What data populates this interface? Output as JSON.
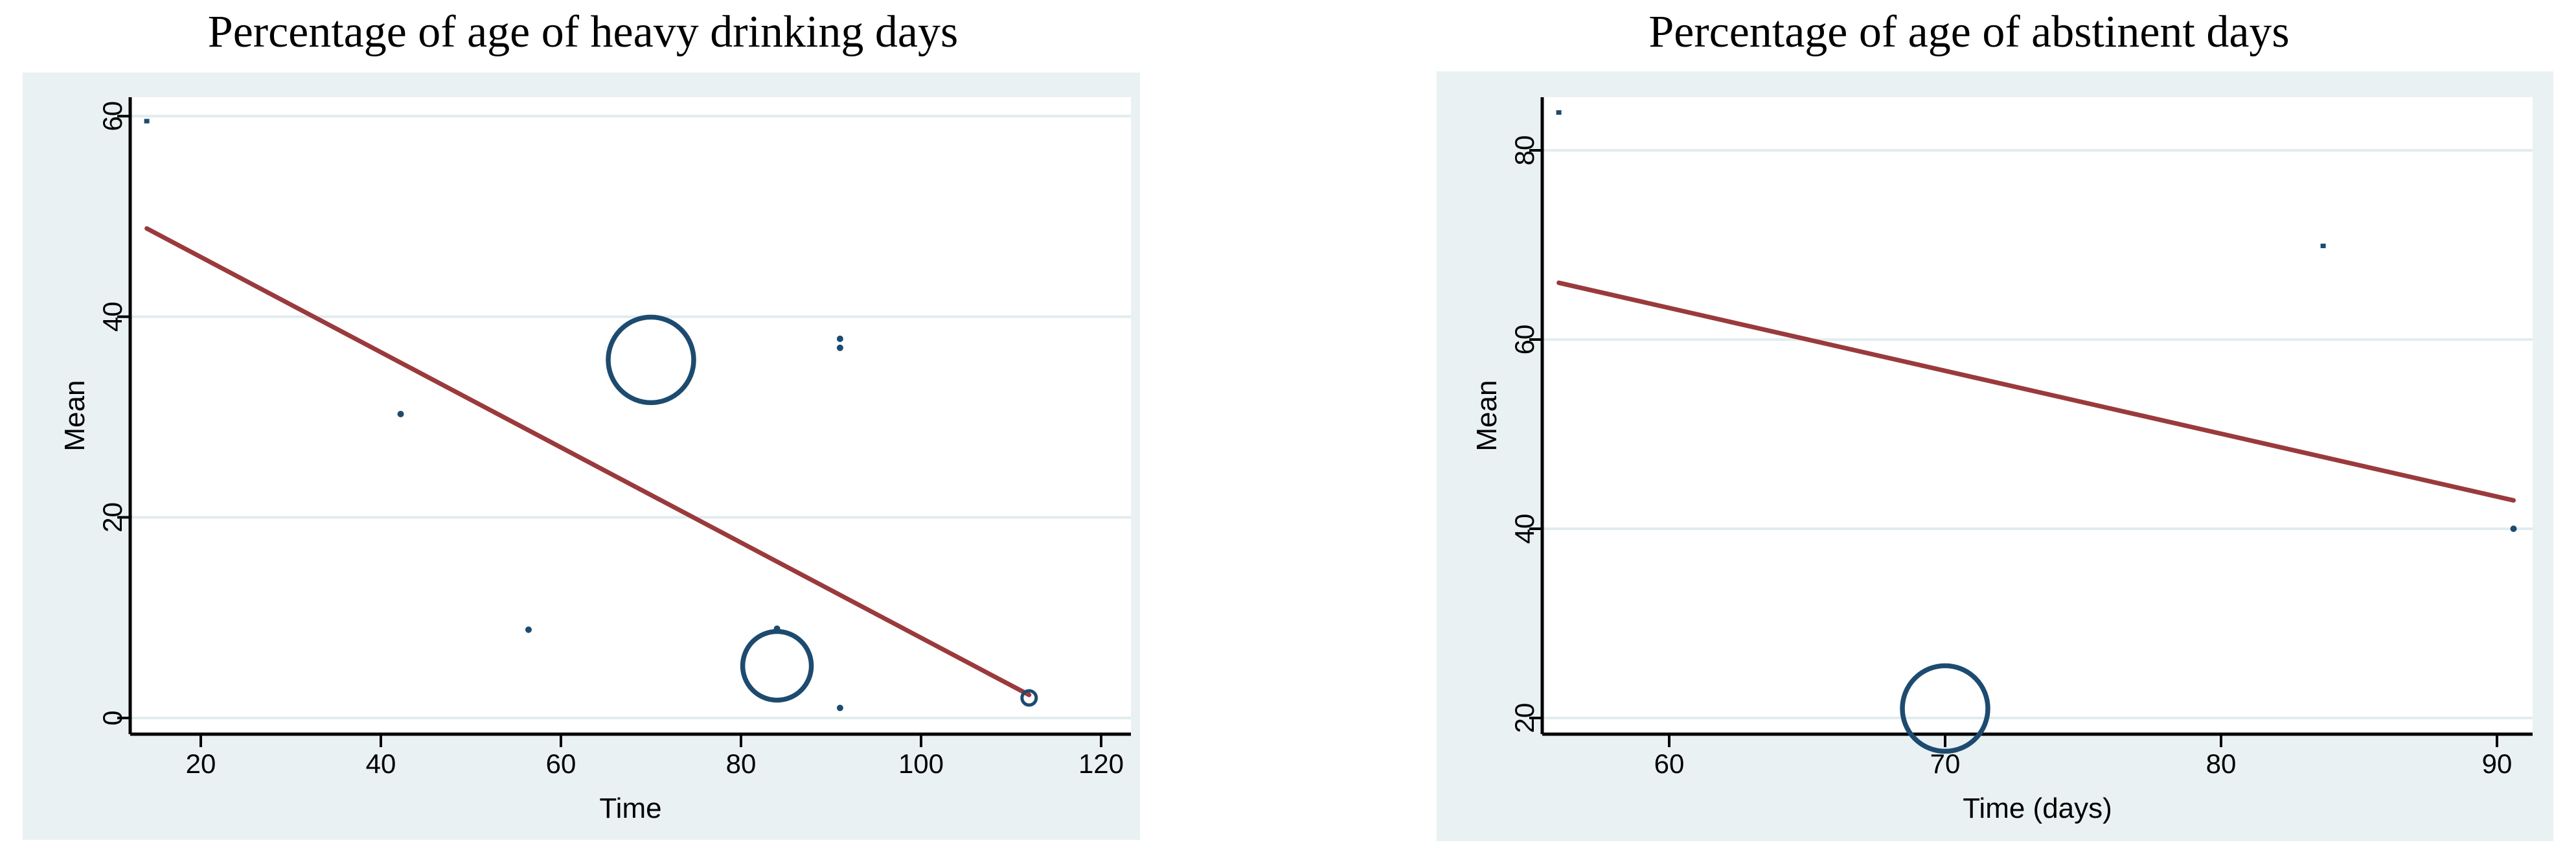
{
  "page": {
    "background": "#ffffff"
  },
  "palette": {
    "plot_outer_bg": "#eaf1f3",
    "plot_inner_bg": "#ffffff",
    "gridline": "#e1ecef",
    "axis": "#000000",
    "marker": "#1d4b70",
    "fit_line": "#9a3a3c",
    "text": "#000000"
  },
  "chart_data": [
    {
      "type": "scatter",
      "title": "Percentage of age of heavy drinking days",
      "xlabel": "Time",
      "ylabel": "Mean",
      "x_ticks": [
        20,
        40,
        60,
        80,
        100,
        120
      ],
      "y_ticks": [
        0,
        20,
        40,
        60
      ],
      "xlim": [
        12.2,
        123.3
      ],
      "ylim": [
        -1.6,
        61.9
      ],
      "grid": "horizontal",
      "legend": "none",
      "points": [
        {
          "x": 14,
          "y": 59.5,
          "marker": "square",
          "r": 4
        },
        {
          "x": 42.2,
          "y": 30.3,
          "marker": "dot",
          "r": 5
        },
        {
          "x": 56.4,
          "y": 8.8,
          "marker": "dot",
          "r": 5
        },
        {
          "x": 70,
          "y": 35.7,
          "marker": "circle",
          "r": 66
        },
        {
          "x": 84,
          "y": 8.9,
          "marker": "dot",
          "r": 5
        },
        {
          "x": 84,
          "y": 5.2,
          "marker": "circle",
          "r": 53
        },
        {
          "x": 91,
          "y": 37.8,
          "marker": "dot",
          "r": 5
        },
        {
          "x": 91,
          "y": 36.9,
          "marker": "dot",
          "r": 5
        },
        {
          "x": 91,
          "y": 1.0,
          "marker": "dot",
          "r": 5
        },
        {
          "x": 112,
          "y": 2.0,
          "marker": "circle",
          "r": 11
        }
      ],
      "fit_line": {
        "x1": 14,
        "y1": 48.8,
        "x2": 112,
        "y2": 2.3
      }
    },
    {
      "type": "scatter",
      "title": "Percentage of age of abstinent days",
      "xlabel": "Time (days)",
      "ylabel": "Mean",
      "x_ticks": [
        60,
        70,
        80,
        90
      ],
      "y_ticks": [
        20,
        40,
        60,
        80
      ],
      "xlim": [
        55.4,
        91.3
      ],
      "ylim": [
        18.3,
        85.6
      ],
      "grid": "horizontal",
      "legend": "none",
      "points": [
        {
          "x": 56,
          "y": 84,
          "marker": "square",
          "r": 4
        },
        {
          "x": 83.7,
          "y": 69.9,
          "marker": "square",
          "r": 4
        },
        {
          "x": 90.6,
          "y": 40,
          "marker": "dot",
          "r": 5
        },
        {
          "x": 70,
          "y": 21,
          "marker": "circle",
          "r": 66
        }
      ],
      "fit_line": {
        "x1": 56,
        "y1": 66,
        "x2": 90.6,
        "y2": 43
      }
    }
  ]
}
